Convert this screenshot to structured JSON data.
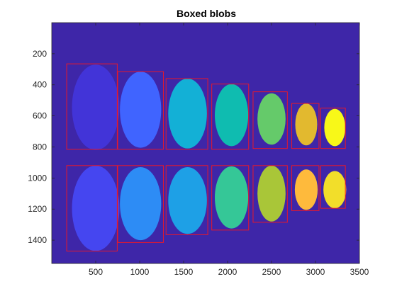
{
  "chart_data": {
    "type": "heatmap",
    "title": "Boxed blobs",
    "xlabel": "",
    "ylabel": "",
    "xlim": [
      0,
      3500
    ],
    "ylim": [
      1550,
      0
    ],
    "y_reversed": true,
    "xticks": [
      500,
      1000,
      1500,
      2000,
      2500,
      3000,
      3500
    ],
    "yticks": [
      200,
      400,
      600,
      800,
      1000,
      1200,
      1400
    ],
    "grid": false,
    "background_color": "#3e26a8",
    "box_color": "#e8182a",
    "blobs": [
      {
        "row": 1,
        "x": 500,
        "y": 545,
        "rx": 270,
        "ry": 275,
        "color": "#4234d8"
      },
      {
        "row": 1,
        "x": 1010,
        "y": 560,
        "rx": 235,
        "ry": 245,
        "color": "#4064ff"
      },
      {
        "row": 1,
        "x": 1545,
        "y": 585,
        "rx": 220,
        "ry": 225,
        "color": "#13b0d6"
      },
      {
        "row": 1,
        "x": 2045,
        "y": 595,
        "rx": 190,
        "ry": 200,
        "color": "#0fbcb0"
      },
      {
        "row": 1,
        "x": 2500,
        "y": 620,
        "rx": 160,
        "ry": 165,
        "color": "#65ca6a"
      },
      {
        "row": 1,
        "x": 2895,
        "y": 655,
        "rx": 125,
        "ry": 135,
        "color": "#e2b92f"
      },
      {
        "row": 1,
        "x": 3220,
        "y": 675,
        "rx": 120,
        "ry": 120,
        "color": "#f8f818"
      },
      {
        "row": 2,
        "x": 500,
        "y": 1195,
        "rx": 270,
        "ry": 275,
        "color": "#4546f0"
      },
      {
        "row": 2,
        "x": 1010,
        "y": 1165,
        "rx": 235,
        "ry": 235,
        "color": "#2d8cf5"
      },
      {
        "row": 2,
        "x": 1545,
        "y": 1145,
        "rx": 220,
        "ry": 215,
        "color": "#1ea0e6"
      },
      {
        "row": 2,
        "x": 2045,
        "y": 1125,
        "rx": 190,
        "ry": 200,
        "color": "#35c797"
      },
      {
        "row": 2,
        "x": 2500,
        "y": 1100,
        "rx": 160,
        "ry": 180,
        "color": "#a9c638"
      },
      {
        "row": 2,
        "x": 2895,
        "y": 1075,
        "rx": 130,
        "ry": 130,
        "color": "#feba3c"
      },
      {
        "row": 2,
        "x": 3220,
        "y": 1075,
        "rx": 130,
        "ry": 120,
        "color": "#f2de2a"
      }
    ],
    "boxes": [
      {
        "x0": 170,
        "x1": 745,
        "y0": 265,
        "y1": 815
      },
      {
        "x0": 750,
        "x1": 1270,
        "y0": 315,
        "y1": 815
      },
      {
        "x0": 1300,
        "x1": 1775,
        "y0": 360,
        "y1": 815
      },
      {
        "x0": 1820,
        "x1": 2240,
        "y0": 395,
        "y1": 815
      },
      {
        "x0": 2290,
        "x1": 2680,
        "y0": 445,
        "y1": 810
      },
      {
        "x0": 2730,
        "x1": 3040,
        "y0": 520,
        "y1": 810
      },
      {
        "x0": 3060,
        "x1": 3340,
        "y0": 550,
        "y1": 810
      },
      {
        "x0": 170,
        "x1": 745,
        "y0": 920,
        "y1": 1470
      },
      {
        "x0": 750,
        "x1": 1270,
        "y0": 920,
        "y1": 1415
      },
      {
        "x0": 1300,
        "x1": 1775,
        "y0": 920,
        "y1": 1365
      },
      {
        "x0": 1820,
        "x1": 2240,
        "y0": 920,
        "y1": 1335
      },
      {
        "x0": 2290,
        "x1": 2680,
        "y0": 920,
        "y1": 1285
      },
      {
        "x0": 2730,
        "x1": 3040,
        "y0": 920,
        "y1": 1210
      },
      {
        "x0": 3060,
        "x1": 3340,
        "y0": 920,
        "y1": 1195
      }
    ]
  }
}
